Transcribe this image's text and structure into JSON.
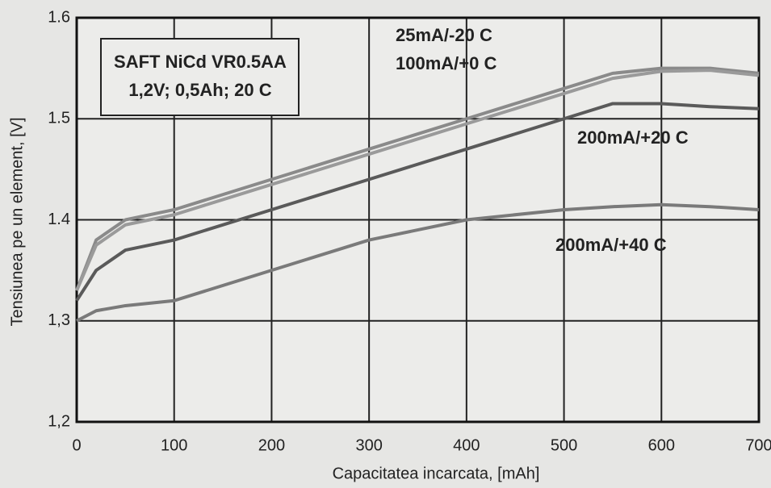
{
  "chart_data": {
    "type": "line",
    "title": "SAFT NiCd VR0.5AA",
    "subtitle": "1,2V; 0,5Ah; 20 C",
    "x_label": "Capacitatea incarcata, [mAh]",
    "y_label": "Tensiunea pe un element, [V]",
    "x": [
      0,
      20,
      50,
      100,
      200,
      300,
      400,
      500,
      550,
      600,
      650,
      700
    ],
    "series": [
      {
        "name": "25mA/-20 C",
        "color": "#8a8a8a",
        "values": [
          1.33,
          1.38,
          1.4,
          1.41,
          1.44,
          1.47,
          1.5,
          1.53,
          1.545,
          1.55,
          1.55,
          1.545
        ]
      },
      {
        "name": "100mA/+0 C",
        "color": "#9a9a9a",
        "values": [
          1.33,
          1.375,
          1.395,
          1.405,
          1.435,
          1.465,
          1.495,
          1.525,
          1.54,
          1.547,
          1.548,
          1.543
        ]
      },
      {
        "name": "200mA/+20 C",
        "color": "#5a5a5a",
        "values": [
          1.32,
          1.35,
          1.37,
          1.38,
          1.41,
          1.44,
          1.47,
          1.5,
          1.515,
          1.515,
          1.512,
          1.51
        ]
      },
      {
        "name": "200mA/+40 C",
        "color": "#7a7a7a",
        "values": [
          1.3,
          1.31,
          1.315,
          1.32,
          1.35,
          1.38,
          1.4,
          1.41,
          1.413,
          1.415,
          1.413,
          1.41
        ]
      }
    ],
    "xlim": [
      0,
      700
    ],
    "ylim": [
      1.2,
      1.6
    ],
    "xticks": [
      0,
      100,
      200,
      300,
      400,
      500,
      600,
      700
    ],
    "yticks": [
      {
        "value": 1.2,
        "label": "1,2"
      },
      {
        "value": 1.3,
        "label": "1,3"
      },
      1.4,
      1.5,
      1.6
    ],
    "grid": true
  }
}
